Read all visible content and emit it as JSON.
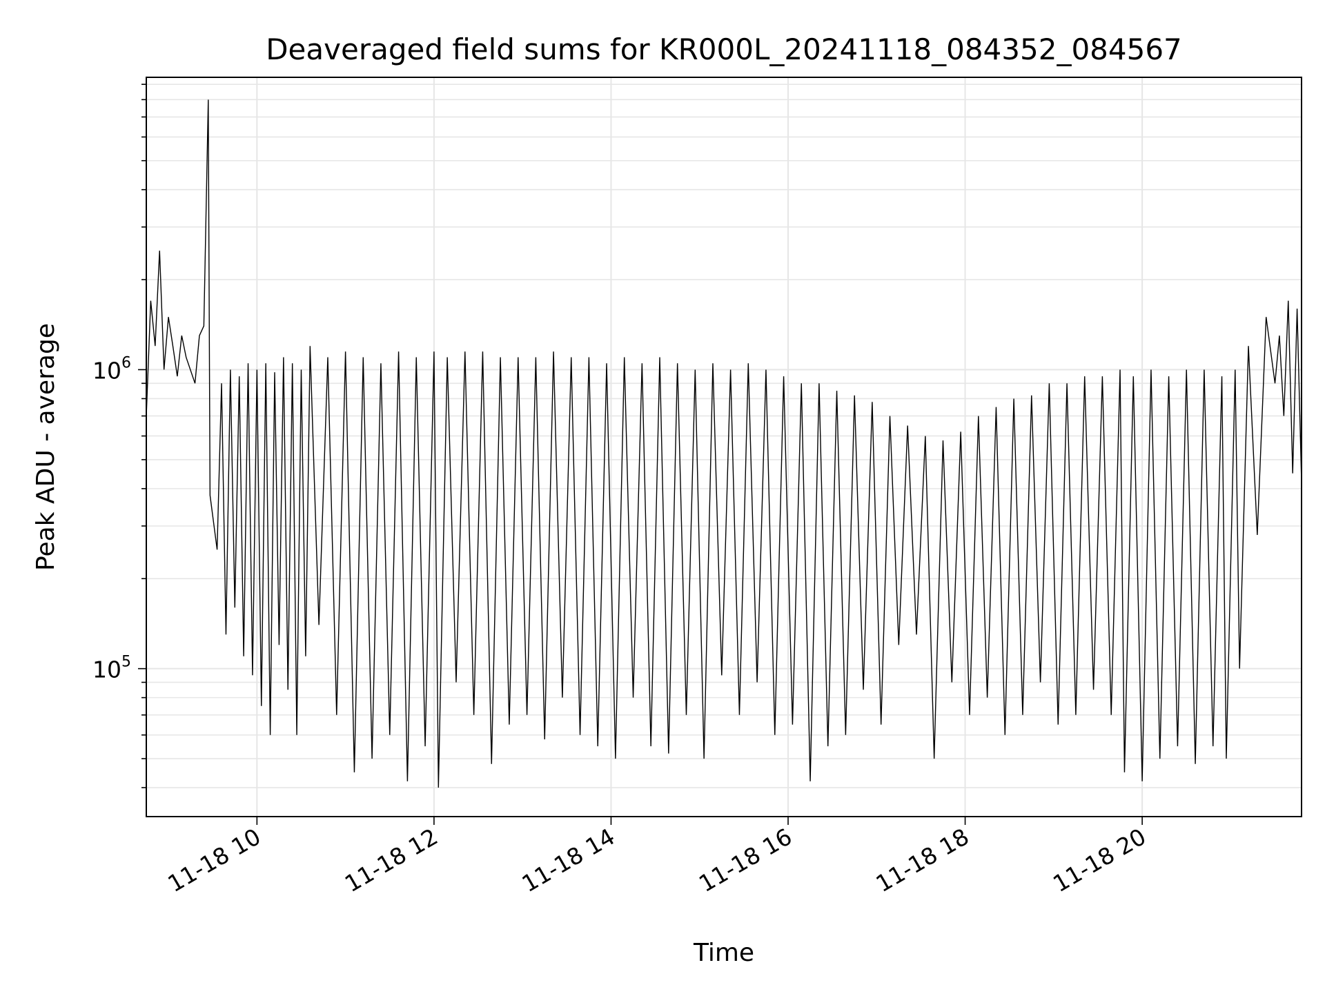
{
  "chart_data": {
    "type": "line",
    "title": "Deaveraged field sums for KR000L_20241118_084352_084567",
    "xlabel": "Time",
    "ylabel": "Peak ADU - average",
    "yscale": "log",
    "xlim_hours": [
      8.75,
      21.8
    ],
    "ylim": [
      32000,
      9500000
    ],
    "x_ticks": [
      {
        "value": 10,
        "label": "11-18 10"
      },
      {
        "value": 12,
        "label": "11-18 12"
      },
      {
        "value": 14,
        "label": "11-18 14"
      },
      {
        "value": 16,
        "label": "11-18 16"
      },
      {
        "value": 18,
        "label": "11-18 18"
      },
      {
        "value": 20,
        "label": "11-18 20"
      }
    ],
    "y_ticks": [
      {
        "value": 100000,
        "base": "10",
        "exp": "5"
      },
      {
        "value": 1000000,
        "base": "10",
        "exp": "6"
      }
    ],
    "grid": true,
    "line_color": "#000000",
    "series": [
      {
        "points": [
          [
            8.75,
            700000
          ],
          [
            8.8,
            1700000
          ],
          [
            8.85,
            1200000
          ],
          [
            8.9,
            2500000
          ],
          [
            8.95,
            1000000
          ],
          [
            9.0,
            1500000
          ],
          [
            9.05,
            1200000
          ],
          [
            9.1,
            950000
          ],
          [
            9.15,
            1300000
          ],
          [
            9.2,
            1100000
          ],
          [
            9.3,
            900000
          ],
          [
            9.35,
            1300000
          ],
          [
            9.4,
            1400000
          ],
          [
            9.45,
            8000000
          ],
          [
            9.47,
            380000
          ],
          [
            9.55,
            250000
          ],
          [
            9.6,
            900000
          ],
          [
            9.65,
            130000
          ],
          [
            9.7,
            1000000
          ],
          [
            9.75,
            160000
          ],
          [
            9.8,
            950000
          ],
          [
            9.85,
            110000
          ],
          [
            9.9,
            1050000
          ],
          [
            9.95,
            95000
          ],
          [
            10.0,
            1000000
          ],
          [
            10.05,
            75000
          ],
          [
            10.1,
            1050000
          ],
          [
            10.15,
            60000
          ],
          [
            10.2,
            980000
          ],
          [
            10.25,
            120000
          ],
          [
            10.3,
            1100000
          ],
          [
            10.35,
            85000
          ],
          [
            10.4,
            1050000
          ],
          [
            10.45,
            60000
          ],
          [
            10.5,
            1000000
          ],
          [
            10.55,
            110000
          ],
          [
            10.6,
            1200000
          ],
          [
            10.7,
            140000
          ],
          [
            10.8,
            1100000
          ],
          [
            10.9,
            70000
          ],
          [
            11.0,
            1150000
          ],
          [
            11.1,
            45000
          ],
          [
            11.2,
            1100000
          ],
          [
            11.3,
            50000
          ],
          [
            11.4,
            1050000
          ],
          [
            11.5,
            60000
          ],
          [
            11.6,
            1150000
          ],
          [
            11.7,
            42000
          ],
          [
            11.8,
            1100000
          ],
          [
            11.9,
            55000
          ],
          [
            12.0,
            1150000
          ],
          [
            12.05,
            40000
          ],
          [
            12.15,
            1100000
          ],
          [
            12.25,
            90000
          ],
          [
            12.35,
            1150000
          ],
          [
            12.45,
            70000
          ],
          [
            12.55,
            1150000
          ],
          [
            12.65,
            48000
          ],
          [
            12.75,
            1100000
          ],
          [
            12.85,
            65000
          ],
          [
            12.95,
            1100000
          ],
          [
            13.05,
            70000
          ],
          [
            13.15,
            1100000
          ],
          [
            13.25,
            58000
          ],
          [
            13.35,
            1150000
          ],
          [
            13.45,
            80000
          ],
          [
            13.55,
            1100000
          ],
          [
            13.65,
            60000
          ],
          [
            13.75,
            1100000
          ],
          [
            13.85,
            55000
          ],
          [
            13.95,
            1050000
          ],
          [
            14.05,
            50000
          ],
          [
            14.15,
            1100000
          ],
          [
            14.25,
            80000
          ],
          [
            14.35,
            1050000
          ],
          [
            14.45,
            55000
          ],
          [
            14.55,
            1100000
          ],
          [
            14.65,
            52000
          ],
          [
            14.75,
            1050000
          ],
          [
            14.85,
            70000
          ],
          [
            14.95,
            1000000
          ],
          [
            15.05,
            50000
          ],
          [
            15.15,
            1050000
          ],
          [
            15.25,
            95000
          ],
          [
            15.35,
            1000000
          ],
          [
            15.45,
            70000
          ],
          [
            15.55,
            1050000
          ],
          [
            15.65,
            90000
          ],
          [
            15.75,
            1000000
          ],
          [
            15.85,
            60000
          ],
          [
            15.95,
            950000
          ],
          [
            16.05,
            65000
          ],
          [
            16.15,
            900000
          ],
          [
            16.25,
            42000
          ],
          [
            16.35,
            900000
          ],
          [
            16.45,
            55000
          ],
          [
            16.55,
            850000
          ],
          [
            16.65,
            60000
          ],
          [
            16.75,
            820000
          ],
          [
            16.85,
            85000
          ],
          [
            16.95,
            780000
          ],
          [
            17.05,
            65000
          ],
          [
            17.15,
            700000
          ],
          [
            17.25,
            120000
          ],
          [
            17.35,
            650000
          ],
          [
            17.45,
            130000
          ],
          [
            17.55,
            600000
          ],
          [
            17.65,
            50000
          ],
          [
            17.75,
            580000
          ],
          [
            17.85,
            90000
          ],
          [
            17.95,
            620000
          ],
          [
            18.05,
            70000
          ],
          [
            18.15,
            700000
          ],
          [
            18.25,
            80000
          ],
          [
            18.35,
            750000
          ],
          [
            18.45,
            60000
          ],
          [
            18.55,
            800000
          ],
          [
            18.65,
            70000
          ],
          [
            18.75,
            820000
          ],
          [
            18.85,
            90000
          ],
          [
            18.95,
            900000
          ],
          [
            19.05,
            65000
          ],
          [
            19.15,
            900000
          ],
          [
            19.25,
            70000
          ],
          [
            19.35,
            950000
          ],
          [
            19.45,
            85000
          ],
          [
            19.55,
            950000
          ],
          [
            19.65,
            70000
          ],
          [
            19.75,
            1000000
          ],
          [
            19.8,
            45000
          ],
          [
            19.9,
            950000
          ],
          [
            20.0,
            42000
          ],
          [
            20.1,
            1000000
          ],
          [
            20.2,
            50000
          ],
          [
            20.3,
            950000
          ],
          [
            20.4,
            55000
          ],
          [
            20.5,
            1000000
          ],
          [
            20.6,
            48000
          ],
          [
            20.7,
            1000000
          ],
          [
            20.8,
            55000
          ],
          [
            20.9,
            950000
          ],
          [
            20.95,
            50000
          ],
          [
            21.05,
            1000000
          ],
          [
            21.1,
            100000
          ],
          [
            21.2,
            1200000
          ],
          [
            21.3,
            280000
          ],
          [
            21.4,
            1500000
          ],
          [
            21.5,
            900000
          ],
          [
            21.55,
            1300000
          ],
          [
            21.6,
            700000
          ],
          [
            21.65,
            1700000
          ],
          [
            21.7,
            450000
          ],
          [
            21.75,
            1600000
          ],
          [
            21.8,
            420000
          ]
        ]
      }
    ]
  }
}
